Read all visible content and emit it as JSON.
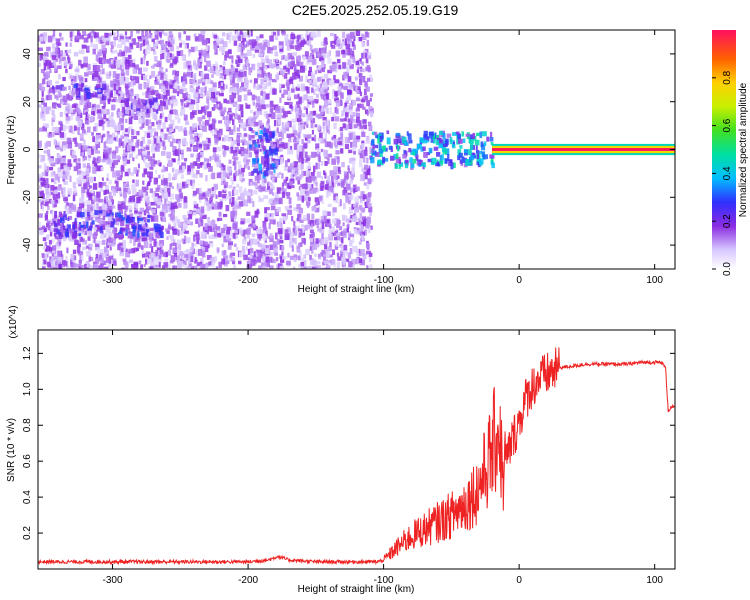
{
  "title": "C2E5.2025.252.05.19.G19",
  "chart_data": [
    {
      "type": "heatmap",
      "xlabel": "Height of straight line (km)",
      "ylabel": "Frequency (Hz)",
      "xlim": [
        -355,
        115
      ],
      "ylim": [
        -50,
        50
      ],
      "x_ticks": [
        "-300",
        "-200",
        "-100",
        "0",
        "100"
      ],
      "y_ticks": [
        "-40",
        "-20",
        "0",
        "20",
        "40"
      ],
      "colorbar": {
        "label": "Normalized spectral amplitude",
        "range": [
          0,
          1
        ],
        "ticks": [
          "0.0",
          "0.2",
          "0.4",
          "0.6",
          "0.8"
        ]
      },
      "features": [
        {
          "x_range": [
            -355,
            -110
          ],
          "y_range": [
            -50,
            50
          ],
          "level": 0.15
        },
        {
          "x_range": [
            -200,
            -180
          ],
          "y_range": [
            -10,
            10
          ],
          "level": 0.3
        },
        {
          "x_range": [
            -110,
            -20
          ],
          "y_range": [
            -6,
            8
          ],
          "level": 0.4
        },
        {
          "x_range": [
            -20,
            115
          ],
          "y_range": [
            -1.5,
            1.5
          ],
          "level": 1.0
        },
        {
          "x_range": [
            -345,
            -305
          ],
          "y_range": [
            22,
            28
          ],
          "level": 0.25
        },
        {
          "x_range": [
            -345,
            -265
          ],
          "y_range": [
            -35,
            -25
          ],
          "level": 0.25
        },
        {
          "x_range": [
            -295,
            -265
          ],
          "y_range": [
            16,
            22
          ],
          "level": 0.2
        }
      ]
    },
    {
      "type": "line",
      "xlabel": "Height of straight line (km)",
      "ylabel": "SNR (10 * v/v)",
      "y_multiplier": "(x10^4)",
      "xlim": [
        -355,
        115
      ],
      "ylim": [
        0,
        1.33
      ],
      "x_ticks": [
        "-300",
        "-200",
        "-100",
        "0",
        "100"
      ],
      "y_ticks": [
        "0.2",
        "0.4",
        "0.6",
        "0.8",
        "1.0",
        "1.2"
      ],
      "series": [
        {
          "color": "#ee2222",
          "x": [
            -355,
            -300,
            -250,
            -200,
            -185,
            -178,
            -170,
            -150,
            -120,
            -105,
            -100,
            -90,
            -80,
            -70,
            -60,
            -50,
            -40,
            -30,
            -25,
            -20,
            -15,
            -12,
            -10,
            -5,
            0,
            5,
            10,
            15,
            20,
            25,
            30,
            40,
            50,
            60,
            70,
            80,
            90,
            100,
            105,
            108,
            110,
            112,
            115
          ],
          "y": [
            0.04,
            0.04,
            0.04,
            0.04,
            0.05,
            0.07,
            0.05,
            0.04,
            0.04,
            0.04,
            0.05,
            0.12,
            0.18,
            0.22,
            0.26,
            0.3,
            0.36,
            0.45,
            0.55,
            0.65,
            0.8,
            0.5,
            0.6,
            0.72,
            0.82,
            0.95,
            1.02,
            1.06,
            1.08,
            1.1,
            1.12,
            1.13,
            1.14,
            1.14,
            1.14,
            1.14,
            1.15,
            1.15,
            1.15,
            1.12,
            0.88,
            0.9,
            0.9
          ]
        }
      ]
    }
  ]
}
